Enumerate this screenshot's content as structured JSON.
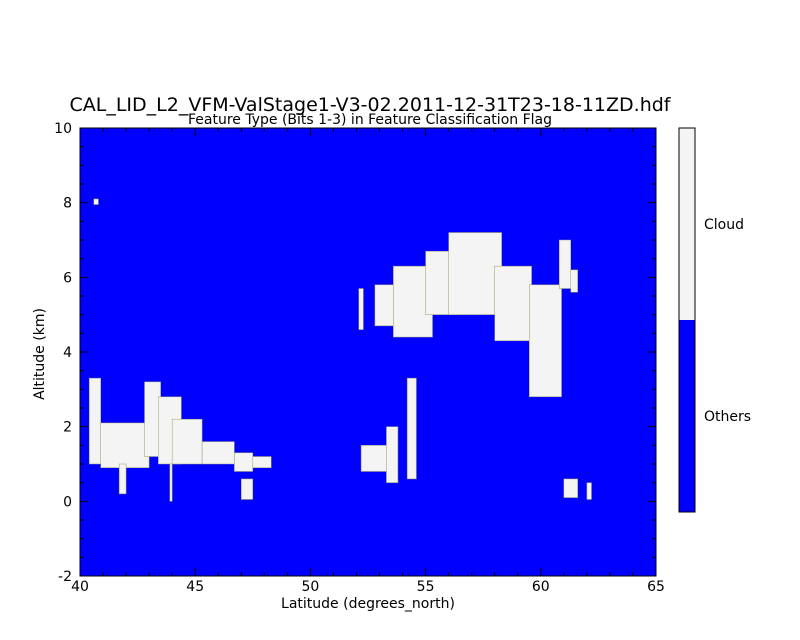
{
  "chart_data": {
    "type": "heatmap",
    "title": "CAL_LID_L2_VFM-ValStage1-V3-02.2011-12-31T23-18-11ZD.hdf",
    "subtitle": "Feature Type (Bits 1-3) in Feature Classification Flag",
    "xlabel": "Latitude (degrees_north)",
    "ylabel": "Altitude (km)",
    "xlim": [
      40,
      65
    ],
    "ylim": [
      -2,
      10
    ],
    "x_ticks": [
      40,
      45,
      50,
      55,
      60,
      65
    ],
    "y_ticks": [
      -2,
      0,
      2,
      4,
      6,
      8,
      10
    ],
    "grid": false,
    "background_class": "Others",
    "colors": {
      "Others": "#0000ff",
      "Cloud": "#f4f4f4"
    },
    "colorbar": {
      "position": "right",
      "classes": [
        {
          "label": "Cloud",
          "color": "#f4f4f4"
        },
        {
          "label": "Others",
          "color": "#0000ff"
        }
      ]
    },
    "cloud_regions": [
      {
        "x": [
          40.6,
          40.8
        ],
        "y": [
          7.95,
          8.1
        ]
      },
      {
        "x": [
          40.4,
          40.9
        ],
        "y": [
          1.0,
          3.3
        ]
      },
      {
        "x": [
          40.9,
          43.0
        ],
        "y": [
          0.9,
          2.1
        ]
      },
      {
        "x": [
          41.7,
          42.0
        ],
        "y": [
          0.2,
          1.0
        ]
      },
      {
        "x": [
          42.8,
          43.5
        ],
        "y": [
          1.2,
          3.2
        ]
      },
      {
        "x": [
          43.4,
          44.4
        ],
        "y": [
          1.0,
          2.8
        ]
      },
      {
        "x": [
          44.0,
          45.3
        ],
        "y": [
          1.0,
          2.2
        ]
      },
      {
        "x": [
          43.9,
          44.0
        ],
        "y": [
          0.0,
          1.0
        ]
      },
      {
        "x": [
          45.3,
          46.7
        ],
        "y": [
          1.0,
          1.6
        ]
      },
      {
        "x": [
          46.7,
          47.5
        ],
        "y": [
          0.8,
          1.3
        ]
      },
      {
        "x": [
          47.5,
          48.3
        ],
        "y": [
          0.9,
          1.2
        ]
      },
      {
        "x": [
          47.0,
          47.5
        ],
        "y": [
          0.05,
          0.6
        ]
      },
      {
        "x": [
          52.2,
          53.4
        ],
        "y": [
          0.8,
          1.5
        ]
      },
      {
        "x": [
          53.3,
          53.8
        ],
        "y": [
          0.5,
          2.0
        ]
      },
      {
        "x": [
          54.2,
          54.6
        ],
        "y": [
          0.6,
          3.3
        ]
      },
      {
        "x": [
          52.1,
          52.3
        ],
        "y": [
          4.6,
          5.7
        ]
      },
      {
        "x": [
          52.8,
          53.6
        ],
        "y": [
          4.7,
          5.8
        ]
      },
      {
        "x": [
          53.6,
          55.3
        ],
        "y": [
          4.4,
          6.3
        ]
      },
      {
        "x": [
          55.0,
          56.5
        ],
        "y": [
          5.0,
          6.7
        ]
      },
      {
        "x": [
          56.0,
          58.3
        ],
        "y": [
          5.0,
          7.2
        ]
      },
      {
        "x": [
          58.0,
          59.6
        ],
        "y": [
          4.3,
          6.3
        ]
      },
      {
        "x": [
          59.5,
          60.9
        ],
        "y": [
          2.8,
          5.8
        ]
      },
      {
        "x": [
          60.8,
          61.3
        ],
        "y": [
          5.7,
          7.0
        ]
      },
      {
        "x": [
          61.3,
          61.6
        ],
        "y": [
          5.6,
          6.2
        ]
      },
      {
        "x": [
          61.0,
          61.6
        ],
        "y": [
          0.1,
          0.6
        ]
      },
      {
        "x": [
          62.0,
          62.2
        ],
        "y": [
          0.05,
          0.5
        ]
      }
    ]
  }
}
